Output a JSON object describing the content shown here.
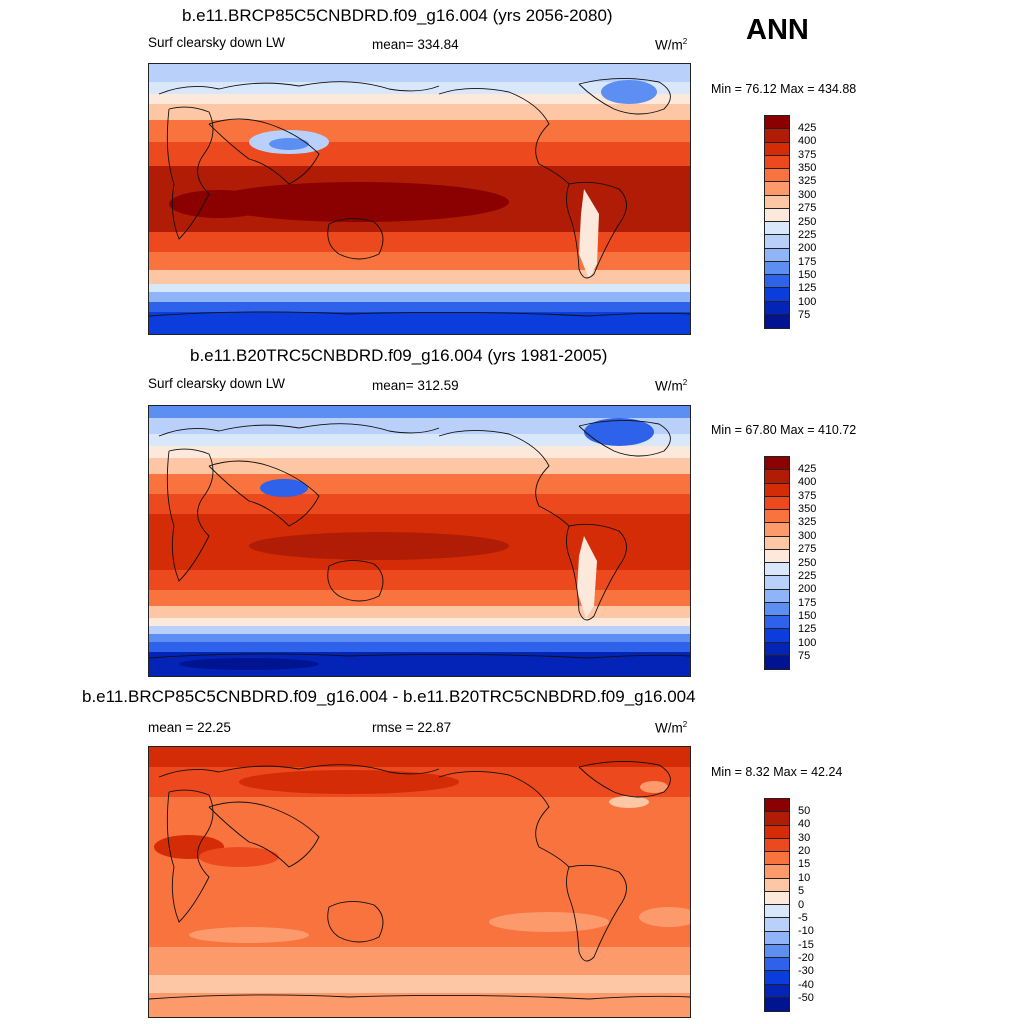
{
  "season": "ANN",
  "chart_data": [
    {
      "type": "heatmap",
      "title": "b.e11.BRCP85C5CNBDRD.f09_g16.004 (yrs 2056-2080)",
      "variable": "Surf clearsky down LW",
      "mean_label": "mean= 334.84",
      "units_base": "W/m",
      "units_exp": "2",
      "min_label": "Min =  76.12",
      "max_label": "Max = 434.88",
      "levels": [
        "425",
        "400",
        "375",
        "350",
        "325",
        "300",
        "275",
        "250",
        "225",
        "200",
        "175",
        "150",
        "125",
        "100",
        "75"
      ],
      "colors": [
        "#8b0000",
        "#b11c06",
        "#d42c06",
        "#ec4a1e",
        "#f8733e",
        "#fc9a6c",
        "#fdc6a4",
        "#fde8dc",
        "#d9e7fb",
        "#b8d0fa",
        "#8fb4f7",
        "#5d8ff2",
        "#2f62ea",
        "#0b3ddd",
        "#0424b7",
        "#001390"
      ]
    },
    {
      "type": "heatmap",
      "title": "b.e11.B20TRC5CNBDRD.f09_g16.004 (yrs 1981-2005)",
      "variable": "Surf clearsky down LW",
      "mean_label": "mean= 312.59",
      "units_base": "W/m",
      "units_exp": "2",
      "min_label": "Min =  67.80",
      "max_label": "Max = 410.72",
      "levels": [
        "425",
        "400",
        "375",
        "350",
        "325",
        "300",
        "275",
        "250",
        "225",
        "200",
        "175",
        "150",
        "125",
        "100",
        "75"
      ],
      "colors": [
        "#8b0000",
        "#b11c06",
        "#d42c06",
        "#ec4a1e",
        "#f8733e",
        "#fc9a6c",
        "#fdc6a4",
        "#fde8dc",
        "#d9e7fb",
        "#b8d0fa",
        "#8fb4f7",
        "#5d8ff2",
        "#2f62ea",
        "#0b3ddd",
        "#0424b7",
        "#001390"
      ]
    },
    {
      "type": "heatmap",
      "title": "b.e11.BRCP85C5CNBDRD.f09_g16.004 - b.e11.B20TRC5CNBDRD.f09_g16.004",
      "mean_label": "mean =  22.25",
      "rmse_label": "rmse =  22.87",
      "units_base": "W/m",
      "units_exp": "2",
      "min_label": "Min =   8.32",
      "max_label": "Max =  42.24",
      "levels": [
        "50",
        "40",
        "30",
        "20",
        "15",
        "10",
        "5",
        "0",
        "-5",
        "-10",
        "-15",
        "-20",
        "-30",
        "-40",
        "-50"
      ],
      "colors": [
        "#8b0000",
        "#b11c06",
        "#d42c06",
        "#ec4a1e",
        "#f8733e",
        "#fc9a6c",
        "#fdc6a4",
        "#fde8dc",
        "#d9e7fb",
        "#b8d0fa",
        "#8fb4f7",
        "#5d8ff2",
        "#2f62ea",
        "#0b3ddd",
        "#0424b7",
        "#001390"
      ]
    }
  ]
}
